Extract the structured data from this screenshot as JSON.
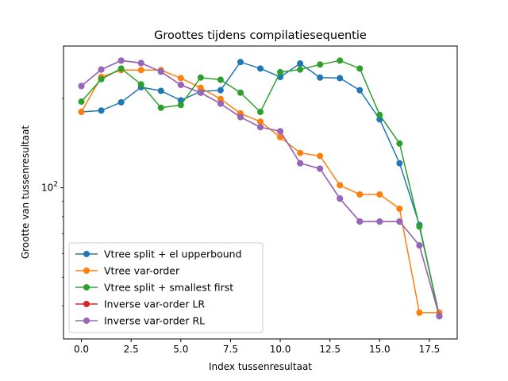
{
  "chart_data": {
    "type": "line",
    "title": "Groottes tijdens compilatiesequentie",
    "xlabel": "Index tussenresultaat",
    "ylabel": "Grootte van tussenresultaat",
    "xlim": [
      -0.9,
      18.9
    ],
    "ylim": [
      31,
      300
    ],
    "yscale": "log",
    "grid": false,
    "legend_position": "lower-left",
    "x_ticks": [
      0,
      2.5,
      5,
      7.5,
      10,
      12.5,
      15,
      17.5
    ],
    "x_tick_labels": [
      "0.0",
      "2.5",
      "5.0",
      "7.5",
      "10.0",
      "12.5",
      "15.0",
      "17.5"
    ],
    "y_ticks": [
      100
    ],
    "y_tick_label": {
      "base": "10",
      "exp": "2"
    },
    "x": [
      0,
      1,
      2,
      3,
      4,
      5,
      6,
      7,
      8,
      9,
      10,
      11,
      12,
      13,
      14,
      15,
      16,
      17,
      18
    ],
    "series": [
      {
        "name": "Vtree split + el upperbound",
        "color": "#1f77b4",
        "values": [
          180,
          182,
          194,
          218,
          212,
          197,
          211,
          213,
          265,
          252,
          236,
          262,
          235,
          234,
          213,
          170,
          121,
          75,
          37
        ]
      },
      {
        "name": "Vtree var-order",
        "color": "#ff7f0e",
        "values": [
          180,
          236,
          249,
          249,
          249,
          234,
          217,
          199,
          178,
          167,
          148,
          131,
          128,
          102,
          95,
          95,
          85,
          38,
          38
        ]
      },
      {
        "name": "Vtree split + smallest first",
        "color": "#2ca02c",
        "values": [
          195,
          232,
          252,
          223,
          186,
          190,
          235,
          231,
          209,
          180,
          245,
          250,
          260,
          268,
          252,
          176,
          141,
          74,
          37
        ]
      },
      {
        "name": "Inverse var-order LR",
        "color": "#d62728",
        "values": [
          220,
          250,
          268,
          263,
          246,
          222,
          209,
          192,
          173,
          160,
          155,
          121,
          116,
          92,
          77,
          77,
          77,
          64,
          37
        ]
      },
      {
        "name": "Inverse var-order RL",
        "color": "#9467bd",
        "values": [
          220,
          250,
          268,
          263,
          246,
          222,
          209,
          192,
          173,
          160,
          155,
          121,
          116,
          92,
          77,
          77,
          77,
          64,
          37
        ]
      }
    ]
  }
}
